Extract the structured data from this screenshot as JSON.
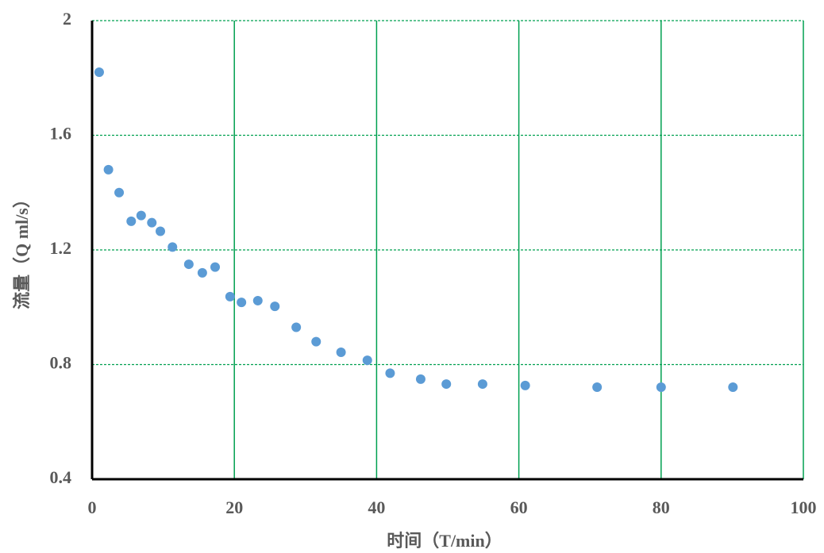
{
  "chart_data": {
    "type": "scatter",
    "x_label": "时间（T/min）",
    "y_label": "流量（Q ml/s）",
    "series": [
      {
        "color": "#5b9bd5",
        "x": [
          1.0,
          2.3,
          3.8,
          5.5,
          6.9,
          8.4,
          9.6,
          11.3,
          13.6,
          15.5,
          17.3,
          19.4,
          21.0,
          23.3,
          25.7,
          28.7,
          31.5,
          35.0,
          38.7,
          41.9,
          46.2,
          49.8,
          54.9,
          60.9,
          71.0,
          80.0,
          90.1
        ],
        "values": [
          1.82,
          1.48,
          1.4,
          1.3,
          1.32,
          1.295,
          1.265,
          1.21,
          1.15,
          1.12,
          1.14,
          1.037,
          1.017,
          1.023,
          1.003,
          0.93,
          0.88,
          0.843,
          0.815,
          0.77,
          0.749,
          0.732,
          0.732,
          0.727,
          0.721,
          0.721,
          0.721
        ]
      }
    ],
    "xlim": [
      0,
      100
    ],
    "xticks": [
      0,
      20,
      40,
      60,
      80,
      100
    ],
    "ylim": [
      0.4,
      2
    ],
    "yticks": [
      0.4,
      0.8,
      1.2,
      1.6,
      2
    ],
    "grid": true,
    "grid_color": "#00a050",
    "axis_color": "#000000"
  }
}
